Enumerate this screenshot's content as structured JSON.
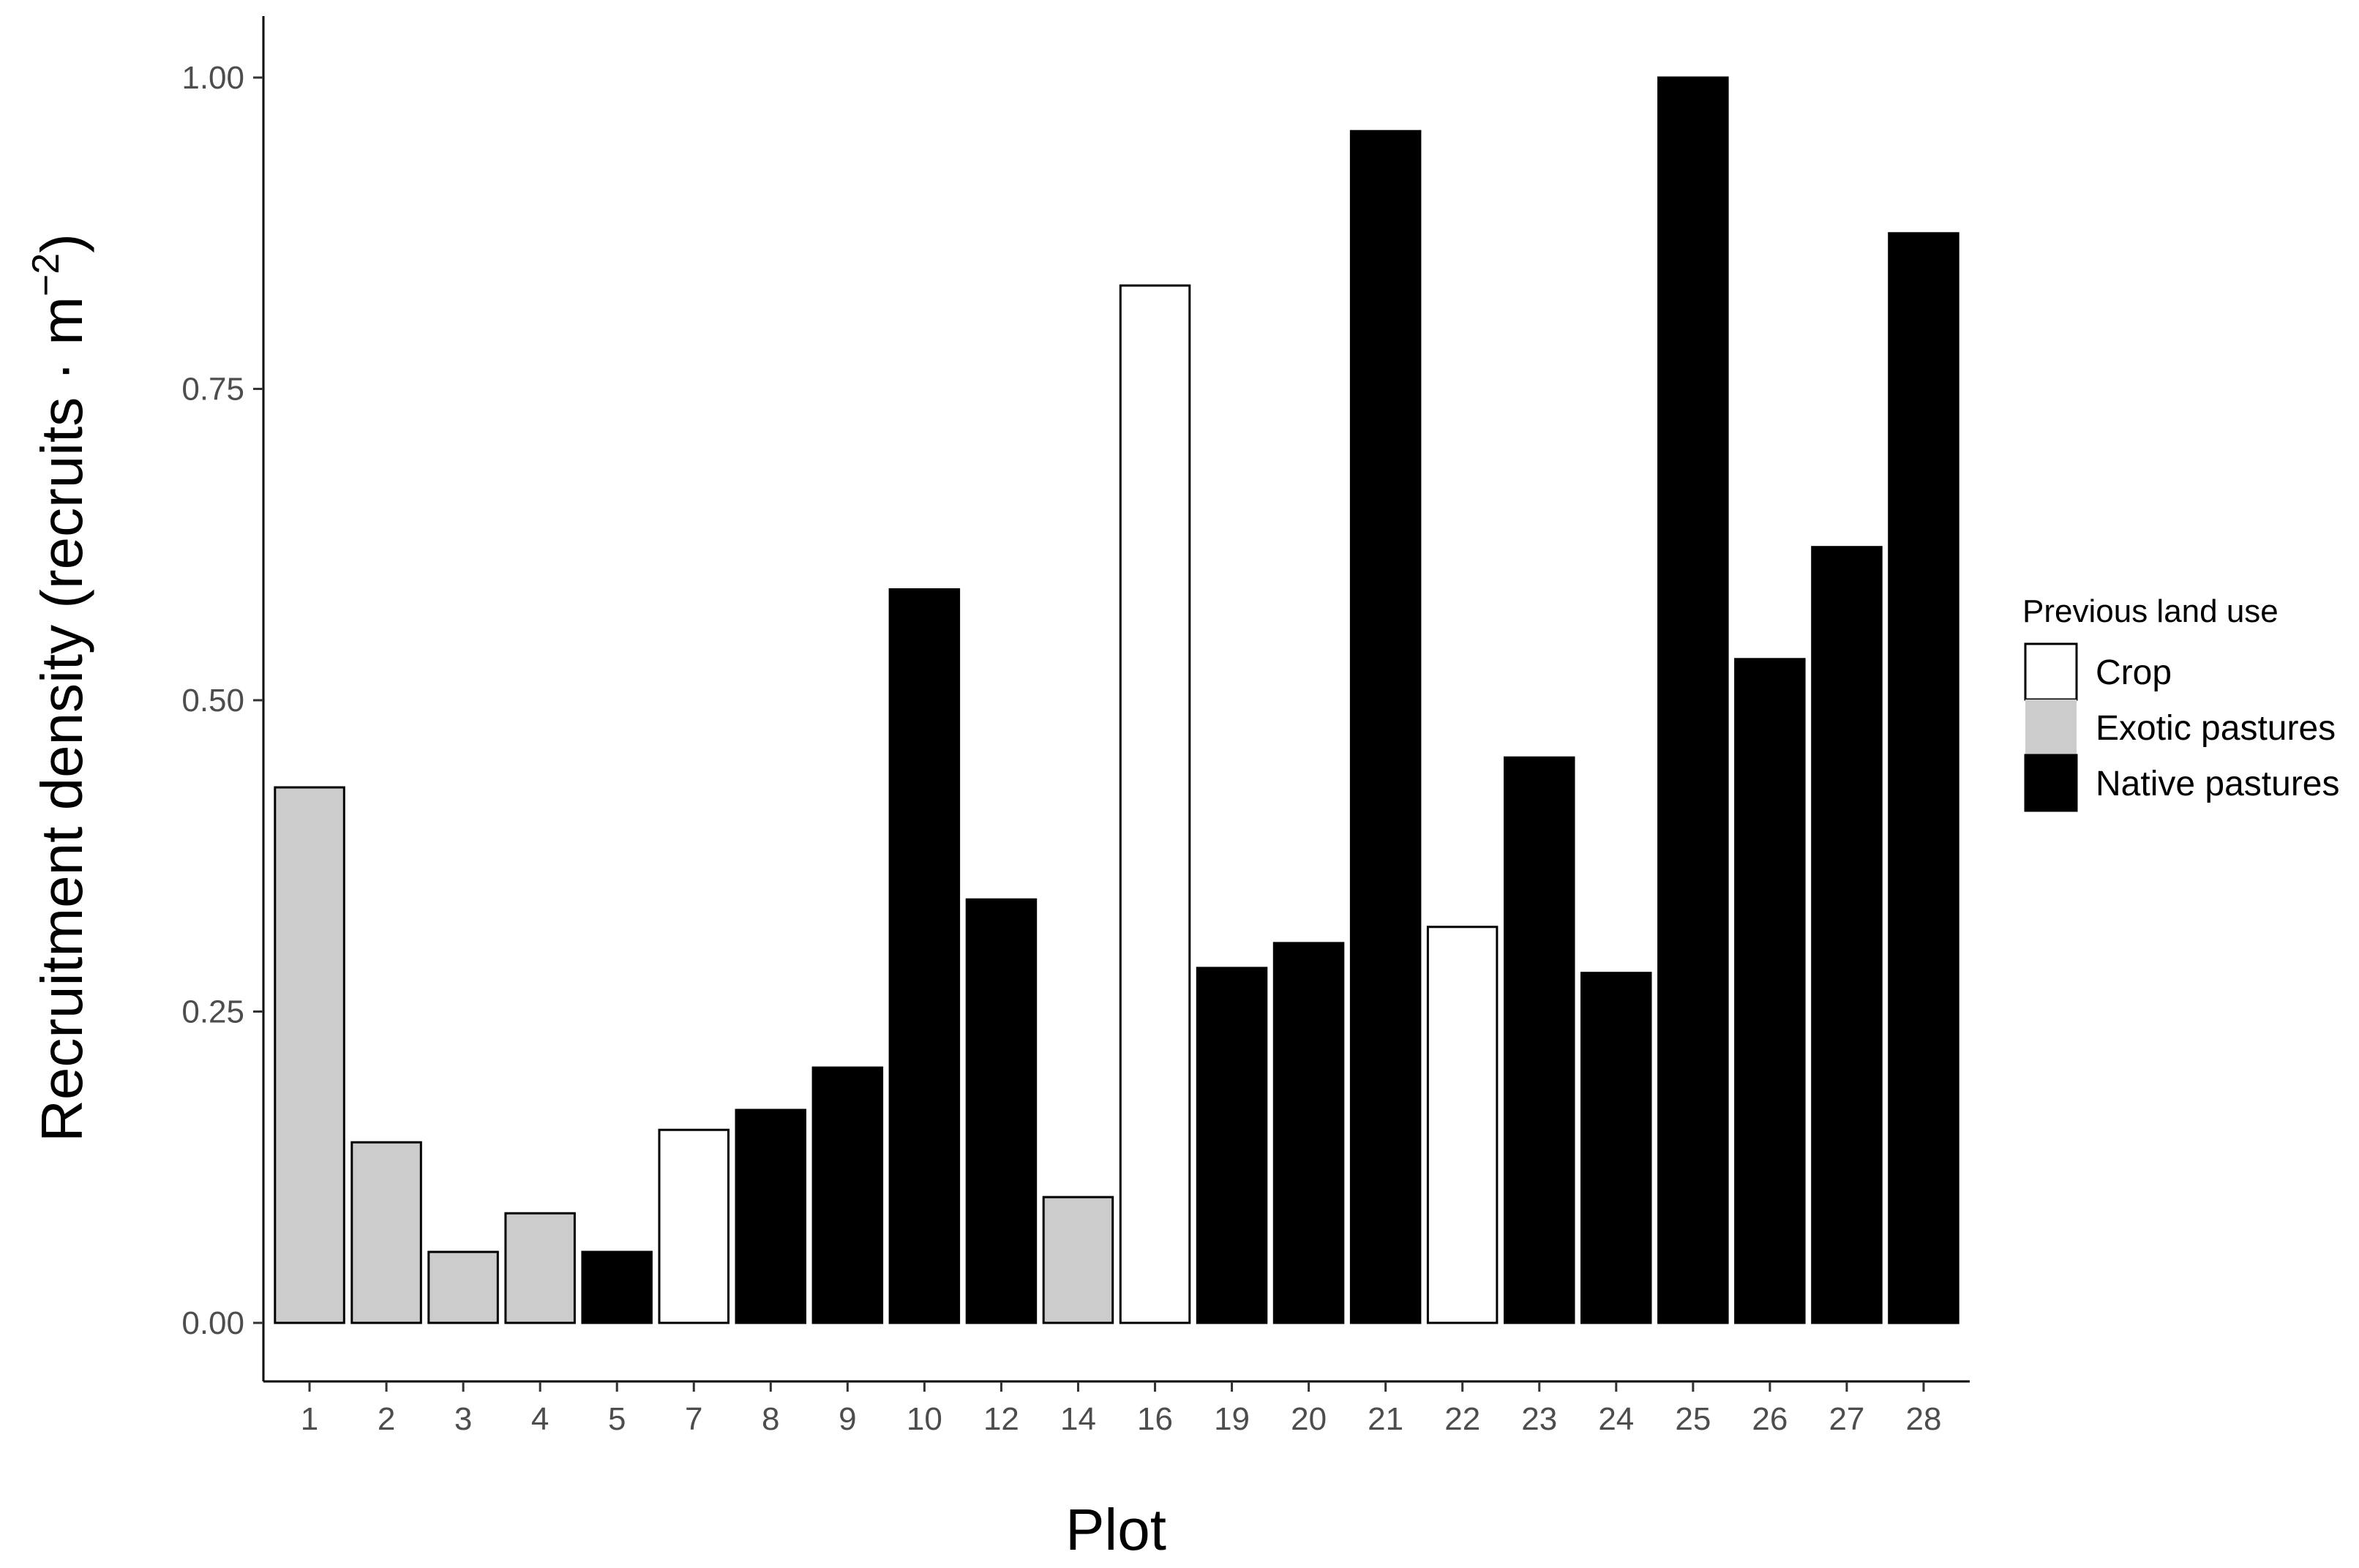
{
  "chart_data": {
    "type": "bar",
    "xlabel": "Plot",
    "ylabel": "Recruitment density (recruits · m⁻²)",
    "ylabel_parts": {
      "prefix": "Recruitment density (recruits ·  m",
      "exponent": "−2",
      "suffix": ")"
    },
    "ylim": [
      -0.05,
      1.05
    ],
    "yticks": [
      "0.00",
      "0.25",
      "0.50",
      "0.75",
      "1.00"
    ],
    "ytick_values": [
      0,
      0.25,
      0.5,
      0.75,
      1.0
    ],
    "grid": false,
    "legend": {
      "title": "Previous land use",
      "placement": "right",
      "entries": [
        {
          "label": "Crop",
          "color": "#ffffff"
        },
        {
          "label": "Exotic pastures",
          "color": "#cccccc"
        },
        {
          "label": "Native pastures",
          "color": "#000000"
        }
      ]
    },
    "categories": [
      "1",
      "2",
      "3",
      "4",
      "5",
      "7",
      "8",
      "9",
      "10",
      "12",
      "14",
      "16",
      "19",
      "20",
      "21",
      "22",
      "23",
      "24",
      "25",
      "26",
      "27",
      "28"
    ],
    "values": [
      0.43,
      0.145,
      0.057,
      0.088,
      0.057,
      0.155,
      0.171,
      0.205,
      0.589,
      0.34,
      0.101,
      0.833,
      0.285,
      0.305,
      0.957,
      0.318,
      0.454,
      0.281,
      1.0,
      0.533,
      0.623,
      0.875
    ],
    "groups": [
      "Exotic pastures",
      "Exotic pastures",
      "Exotic pastures",
      "Exotic pastures",
      "Native pastures",
      "Crop",
      "Native pastures",
      "Native pastures",
      "Native pastures",
      "Native pastures",
      "Exotic pastures",
      "Crop",
      "Native pastures",
      "Native pastures",
      "Native pastures",
      "Crop",
      "Native pastures",
      "Native pastures",
      "Native pastures",
      "Native pastures",
      "Native pastures",
      "Native pastures"
    ]
  }
}
